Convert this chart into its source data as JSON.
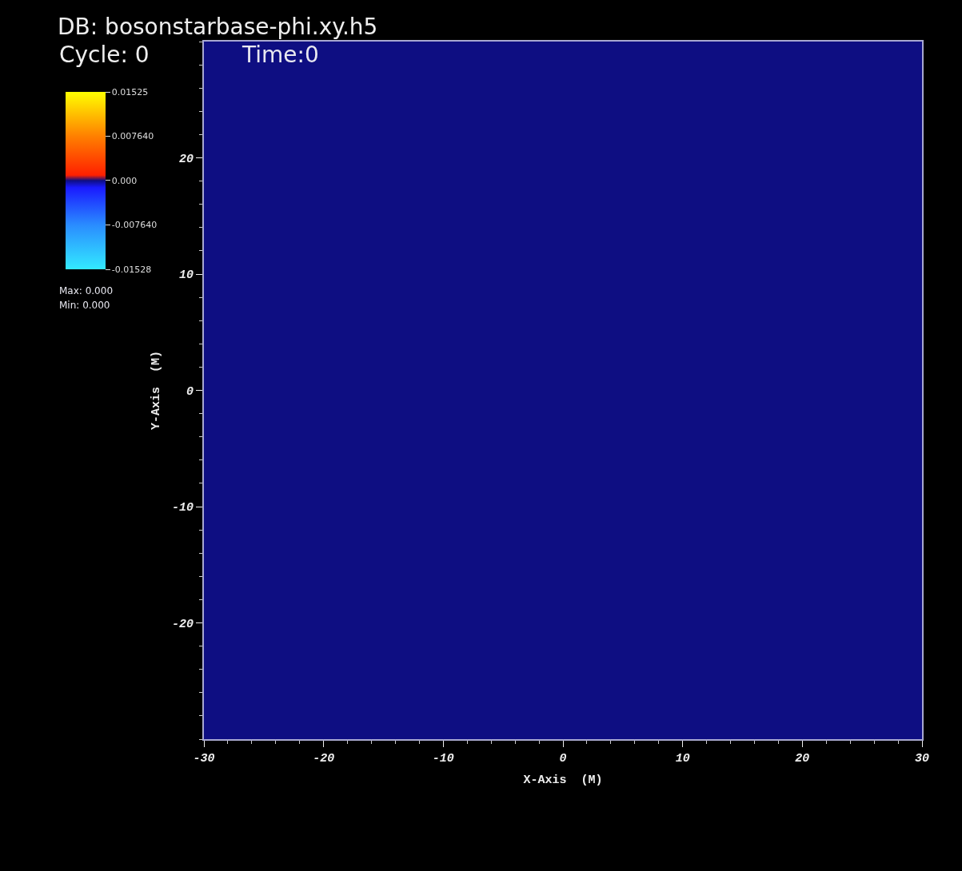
{
  "chart_data": {
    "type": "heatmap",
    "title": "DB: bosonstarbase-phi.xy.h5",
    "subtitle": "Cycle: 0",
    "xlabel": "X-Axis  (M)",
    "ylabel": "Y-Axis  (M)",
    "annotations": [
      "Time:0",
      "Max: 0.000",
      "Min: 0.000"
    ],
    "cells": [
      [
        0,
        0,
        0,
        0
      ],
      [
        0,
        0,
        0,
        0
      ],
      [
        0,
        0,
        0,
        0
      ],
      [
        0,
        0,
        0,
        0
      ]
    ],
    "clim": [
      -0.01528,
      0.01525
    ],
    "cticks": [
      0.01525,
      {
        "value": 0.00764,
        "label": "0.007640"
      },
      {
        "value": 0,
        "label": "0.000"
      },
      {
        "value": -0.00764,
        "label": "-0.007640"
      },
      -0.01528
    ],
    "xlim": [
      -30,
      30
    ],
    "ylim": [
      -30,
      30
    ],
    "xticks": [
      -30,
      -20,
      -10,
      0,
      10,
      20,
      30
    ],
    "yticks": [
      -20,
      -10,
      0,
      10,
      20
    ]
  }
}
